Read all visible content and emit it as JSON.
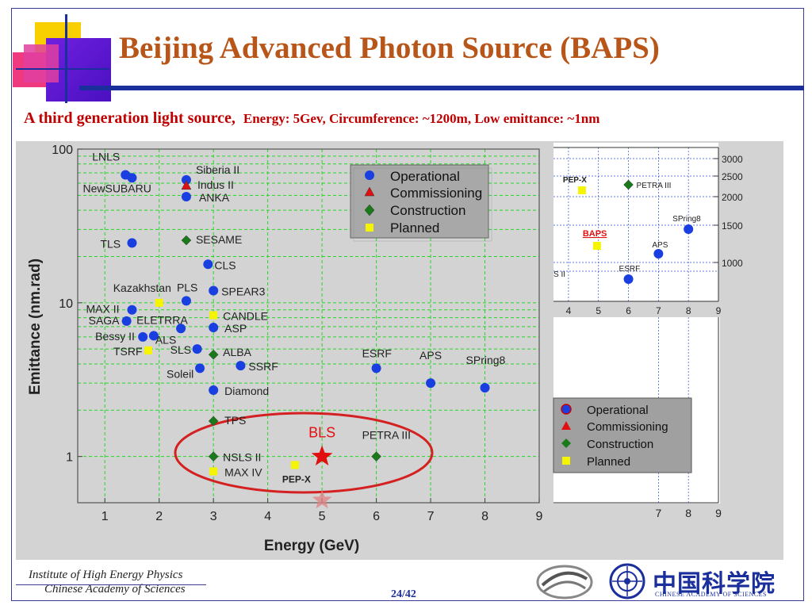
{
  "slide": {
    "title": "Beijing Advanced Photon Source (BAPS)",
    "subtitle_main": "A third generation light source,",
    "subtitle_detail": "Energy: 5Gev, Circumference: ~1200m, Low emittance: ~1nm",
    "page_number": "24/42",
    "institute_line1": "Institute of High Energy Physics",
    "institute_line2": "Chinese Academy of Sciences",
    "cas_name": "中国科学院",
    "cas_name_en": "CHINESE ACADEMY OF SCIENCES"
  },
  "colors": {
    "title": "#b8561a",
    "subtitle": "#c00000",
    "bar": "#1b2f9c",
    "operational": "#1a3fe0",
    "commissioning": "#e01010",
    "construction": "#1a7a1a",
    "planned": "#f5f500",
    "grid": "#26d626",
    "ellipse": "#d42020",
    "chart_bg": "#d3d3d3"
  },
  "legend": {
    "operational": "Operational",
    "commissioning": "Commissioning",
    "construction": "Construction",
    "planned": "Planned"
  },
  "chart_data": [
    {
      "type": "scatter",
      "title": "",
      "xlabel": "Energy (GeV)",
      "ylabel": "Emittance (nm.rad)",
      "xlim": [
        0.5,
        9
      ],
      "ylim": [
        0.5,
        100
      ],
      "yscale": "log",
      "x_ticks": [
        1,
        2,
        3,
        4,
        5,
        6,
        7,
        8,
        9
      ],
      "y_ticks": [
        {
          "value": 1,
          "label": "1"
        },
        {
          "value": 10,
          "label": "10"
        },
        {
          "value": 100,
          "label": "100"
        }
      ],
      "grid": true,
      "legend_position": "top-right",
      "series": [
        {
          "name": "Operational",
          "marker": "circle",
          "points": [
            {
              "x": 1.38,
              "y": 68,
              "label": "LNLS"
            },
            {
              "x": 1.5,
              "y": 65,
              "label": "NewSUBARU"
            },
            {
              "x": 2.5,
              "y": 63,
              "label": "Siberia II"
            },
            {
              "x": 2.5,
              "y": 49,
              "label": "ANKA"
            },
            {
              "x": 1.5,
              "y": 24.5,
              "label": "TLS"
            },
            {
              "x": 2.9,
              "y": 17.8,
              "label": "CLS"
            },
            {
              "x": 2.5,
              "y": 10.3,
              "label": "PLS"
            },
            {
              "x": 3.0,
              "y": 12.0,
              "label": "SPEAR3"
            },
            {
              "x": 1.5,
              "y": 9.0,
              "label": "MAX II"
            },
            {
              "x": 1.4,
              "y": 7.6,
              "label": "SAGA"
            },
            {
              "x": 2.4,
              "y": 6.8,
              "label": "ELETRRA"
            },
            {
              "x": 3.0,
              "y": 6.9,
              "label": "ASP"
            },
            {
              "x": 1.7,
              "y": 6.0,
              "label": "Bessy II"
            },
            {
              "x": 1.9,
              "y": 6.1,
              "label": "ALS"
            },
            {
              "x": 2.7,
              "y": 5.0,
              "label": "SLS"
            },
            {
              "x": 2.75,
              "y": 3.75,
              "label": "Soleil"
            },
            {
              "x": 3.5,
              "y": 3.9,
              "label": "SSRF"
            },
            {
              "x": 3.0,
              "y": 2.7,
              "label": "Diamond"
            },
            {
              "x": 6.0,
              "y": 3.75,
              "label": "ESRF"
            },
            {
              "x": 7.0,
              "y": 3.0,
              "label": "APS"
            },
            {
              "x": 8.0,
              "y": 2.8,
              "label": "SPring8"
            }
          ]
        },
        {
          "name": "Commissioning",
          "marker": "triangle",
          "points": [
            {
              "x": 2.5,
              "y": 58,
              "label": "Indus II"
            }
          ]
        },
        {
          "name": "Construction",
          "marker": "diamond",
          "points": [
            {
              "x": 2.5,
              "y": 25.5,
              "label": "SESAME"
            },
            {
              "x": 3.0,
              "y": 4.6,
              "label": "ALBA"
            },
            {
              "x": 3.0,
              "y": 1.7,
              "label": "TPS"
            },
            {
              "x": 3.0,
              "y": 1.0,
              "label": "NSLS II"
            },
            {
              "x": 6.0,
              "y": 1.0,
              "label": "PETRA III"
            }
          ]
        },
        {
          "name": "Planned",
          "marker": "square",
          "points": [
            {
              "x": 2.0,
              "y": 10.0,
              "label": "Kazakhstan"
            },
            {
              "x": 3.0,
              "y": 8.3,
              "label": "CANDLE"
            },
            {
              "x": 1.8,
              "y": 4.9,
              "label": "TSRF"
            },
            {
              "x": 3.0,
              "y": 0.8,
              "label": "MAX IV"
            },
            {
              "x": 4.5,
              "y": 0.88,
              "label": "PEP-X"
            }
          ]
        }
      ],
      "highlight": [
        {
          "x": 5.0,
          "y": 1.0,
          "label": "BLS",
          "marker": "star"
        },
        {
          "x": 5.0,
          "y": 0.52,
          "label": "",
          "marker": "star-faded"
        }
      ],
      "annotation": "ellipse around low-emittance sources (TPS, NSLS II, MAX IV, PEP-X, BLS, PETRA III)"
    },
    {
      "type": "scatter",
      "title": "",
      "xlabel": "",
      "ylabel": "",
      "xlim": [
        3.5,
        9
      ],
      "x_ticks": [
        4,
        5,
        6,
        7,
        8,
        9
      ],
      "right_axis_labels": [
        "3000",
        "2500",
        "2000",
        "1500",
        "1000"
      ],
      "lower_x_ticks": [
        7,
        8,
        9
      ],
      "grid": true,
      "points": [
        {
          "label": "PEP-X",
          "category": "Planned",
          "x": 4.45
        },
        {
          "label": "PETRA III",
          "category": "Construction",
          "x": 6.0
        },
        {
          "label": "SPring8",
          "category": "Operational",
          "x": 8.0
        },
        {
          "label": "BAPS",
          "category": "Planned",
          "x": 4.95
        },
        {
          "label": "APS",
          "category": "Operational",
          "x": 7.0
        },
        {
          "label": "ESRF",
          "category": "Operational",
          "x": 6.0
        },
        {
          "label": "S II",
          "category": "",
          "x": 3.5
        }
      ],
      "legend": [
        "Operational",
        "Commissioning",
        "Construction",
        "Planned"
      ]
    }
  ]
}
